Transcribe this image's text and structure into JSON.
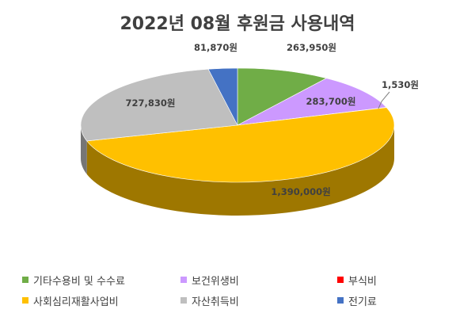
{
  "chart_data": {
    "type": "pie",
    "title": "2022년 08월 후원금 사용내역",
    "series": [
      {
        "name": "기타수용비 및 수수료",
        "value": 263950,
        "label": "263,950원",
        "color": "#70ad47"
      },
      {
        "name": "보건위생비",
        "value": 283700,
        "label": "283,700원",
        "color": "#cc99ff"
      },
      {
        "name": "부식비",
        "value": 1530,
        "label": "1,530원",
        "color": "#ff0000"
      },
      {
        "name": "사회심리재활사업비",
        "value": 1390000,
        "label": "1,390,000원",
        "color": "#ffc000"
      },
      {
        "name": "자산취득비",
        "value": 727830,
        "label": "727,830원",
        "color": "#bfbfbf"
      },
      {
        "name": "전기료",
        "value": 81870,
        "label": "81,870원",
        "color": "#4472c4"
      }
    ],
    "legend_position": "bottom",
    "three_d": true
  }
}
